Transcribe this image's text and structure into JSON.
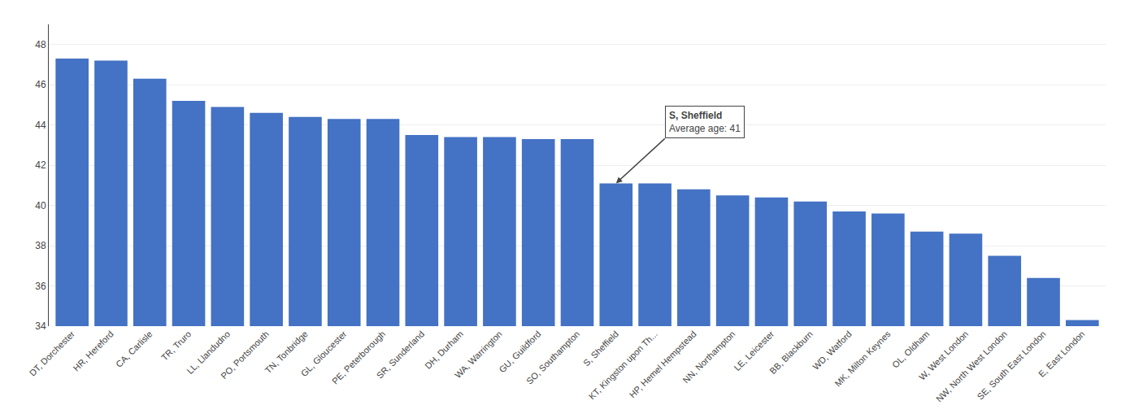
{
  "chart_data": {
    "type": "bar",
    "categories": [
      "DT, Dorchester",
      "HR, Hereford",
      "CA, Carlisle",
      "TR, Truro",
      "LL, Llandudno",
      "PO, Portsmouth",
      "TN, Tonbridge",
      "GL, Gloucester",
      "PE, Peterborough",
      "SR, Sunderland",
      "DH, Durham",
      "WA, Warrington",
      "GU, Guildford",
      "SO, Southampton",
      "S, Sheffield",
      "KT, Kingston upon Th...",
      "HP, Hemel Hempstead",
      "NN, Northampton",
      "LE, Leicester",
      "BB, Blackburn",
      "WD, Watford",
      "MK, Milton Keynes",
      "OL, Oldham",
      "W, West London",
      "NW, North West London",
      "SE, South East London",
      "E, East London"
    ],
    "values": [
      47.3,
      47.2,
      46.3,
      45.2,
      44.9,
      44.6,
      44.4,
      44.3,
      44.3,
      43.5,
      43.4,
      43.4,
      43.3,
      43.3,
      41.1,
      41.1,
      40.8,
      40.5,
      40.4,
      40.2,
      39.7,
      39.6,
      38.7,
      38.6,
      37.5,
      36.4,
      34.3
    ],
    "color": "#4472C4",
    "ylim": [
      34,
      49
    ],
    "yticks": [
      34,
      36,
      38,
      40,
      42,
      44,
      46,
      48
    ],
    "grid": true,
    "annotations": [
      {
        "x": "S, Sheffield",
        "text": [
          "S, Sheffield",
          "Average age: 41"
        ]
      }
    ]
  }
}
